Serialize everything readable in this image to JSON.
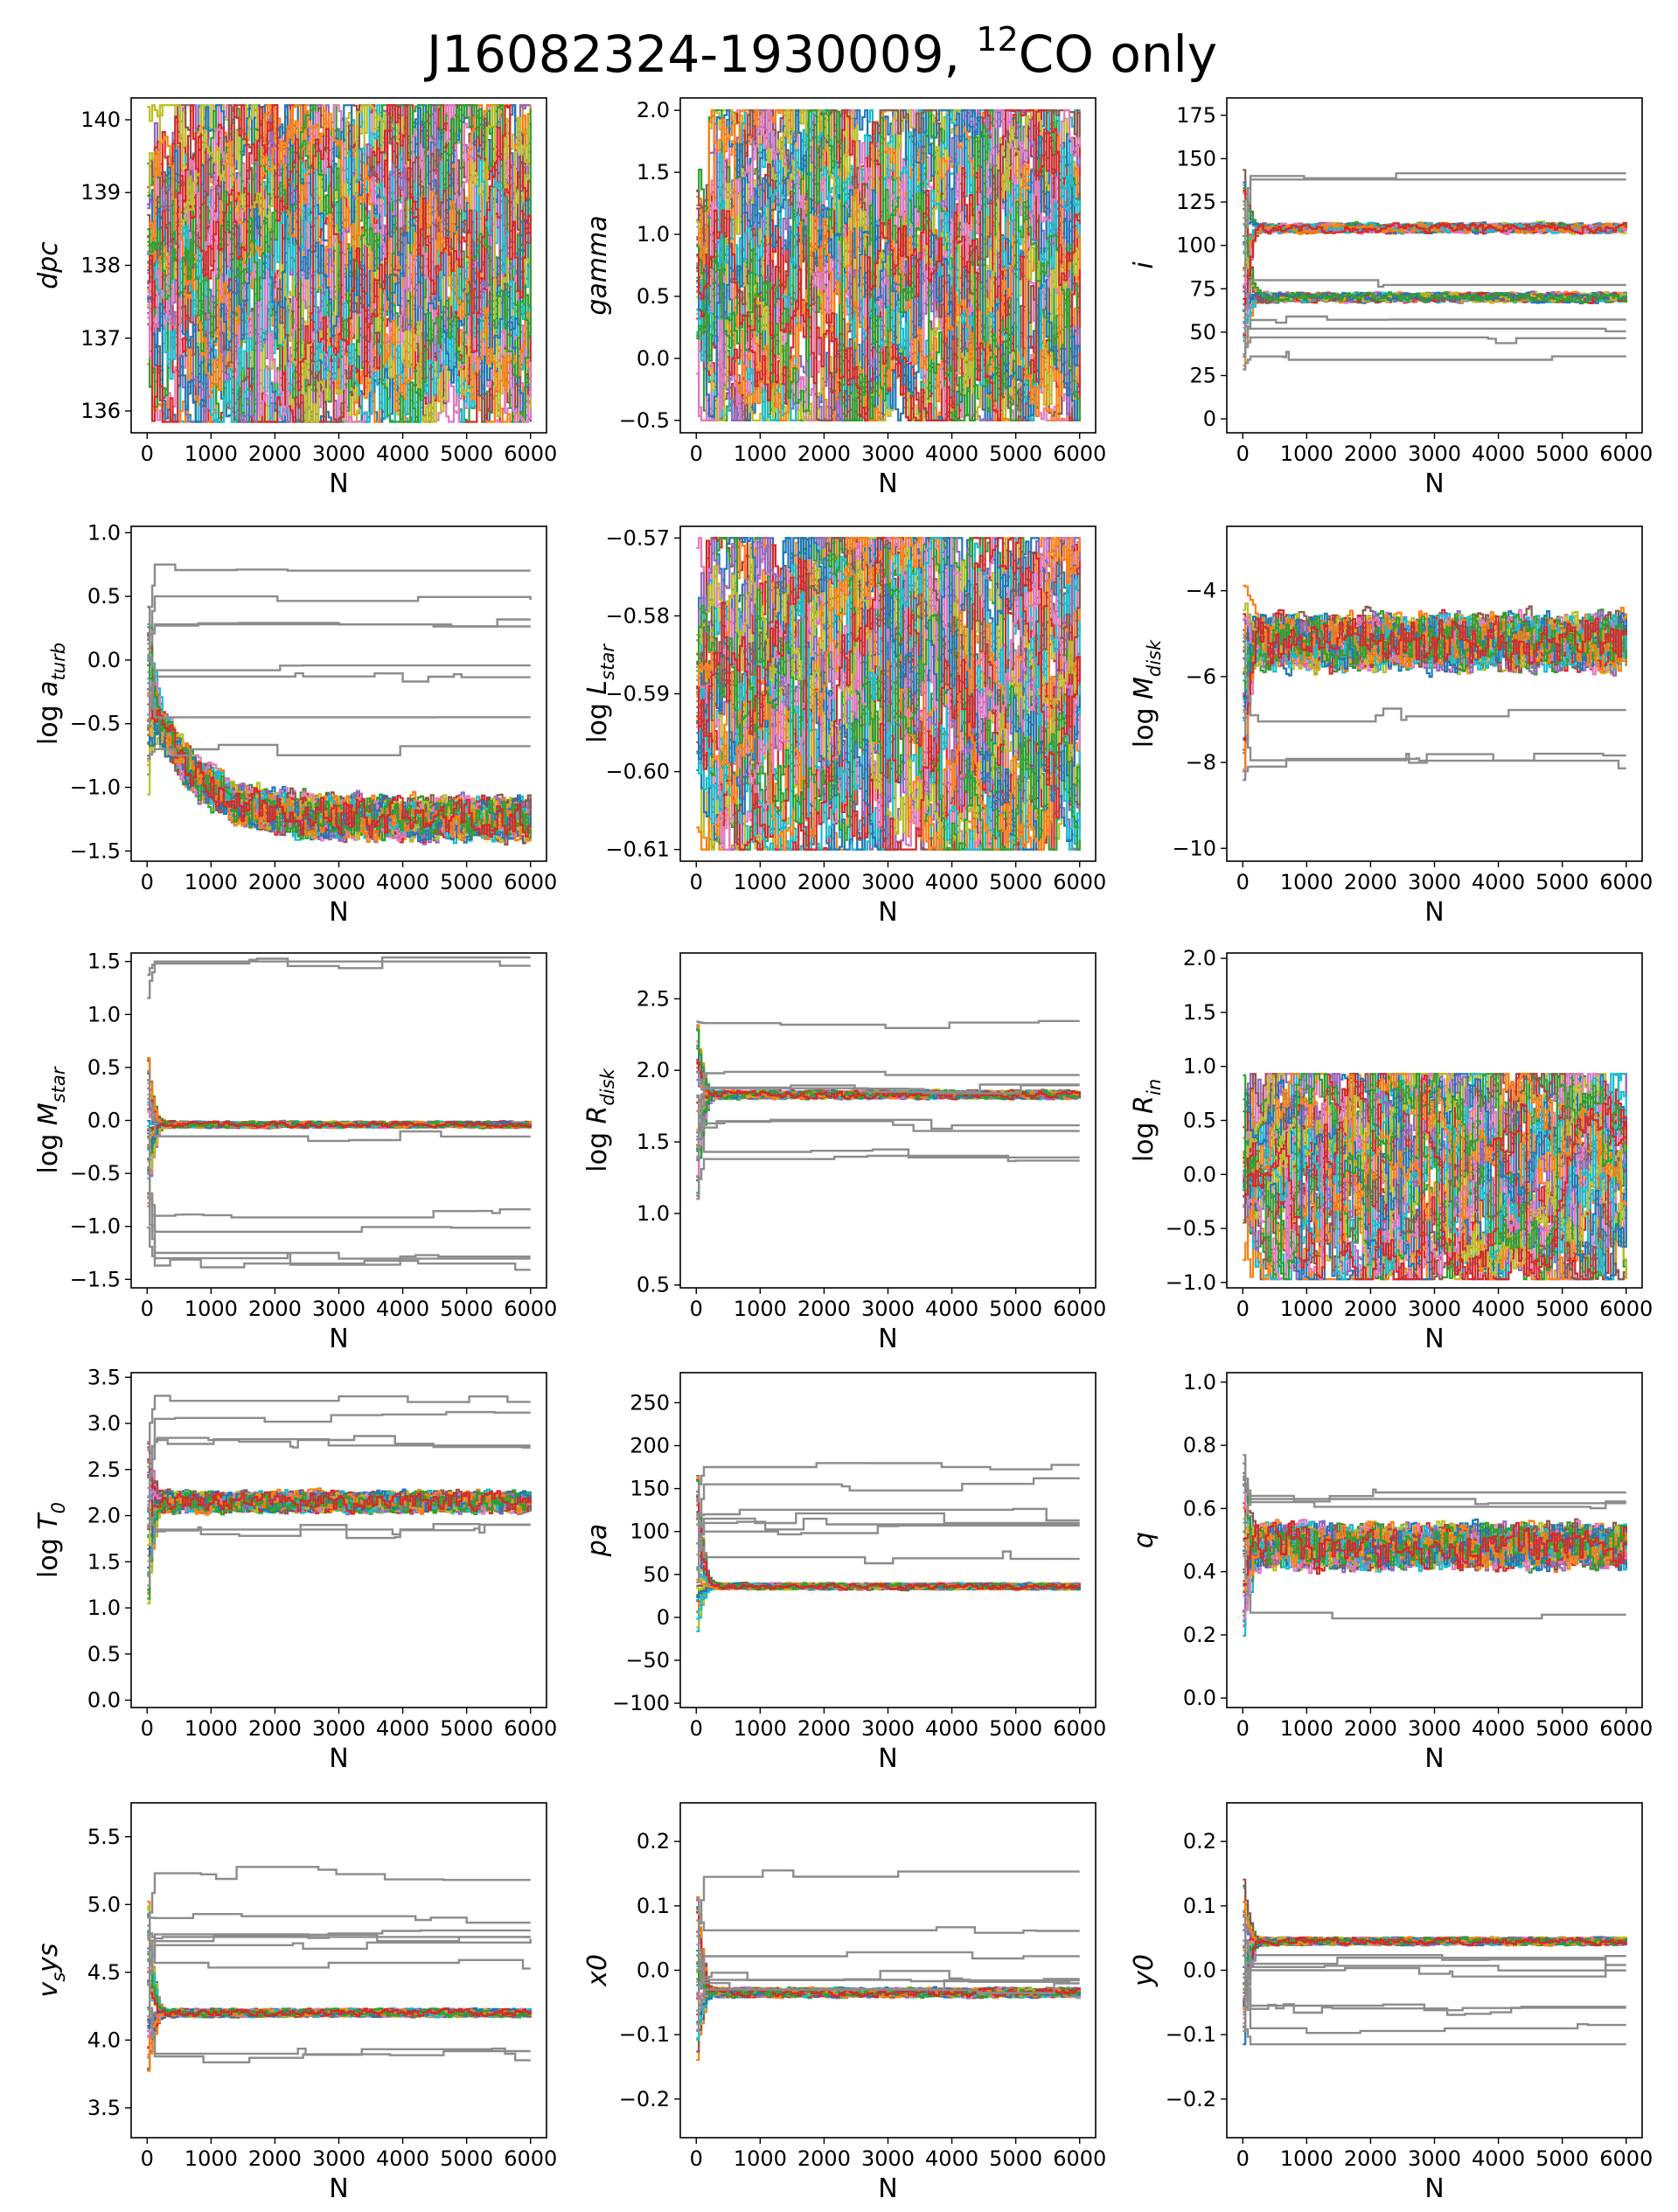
{
  "figure": {
    "title": "J16082324-1930009, ",
    "title_sup": "12",
    "title_tail": "CO only"
  },
  "chart_data": [
    {
      "type": "line",
      "key": "dpc",
      "ylabel": "dpc",
      "xlabel": "N",
      "xlim": [
        -250,
        6250
      ],
      "ylim": [
        135.7,
        140.3
      ],
      "xticks": [
        0,
        1000,
        2000,
        3000,
        4000,
        5000,
        6000
      ],
      "yticks": [
        136,
        137,
        138,
        139,
        140
      ],
      "pattern": "uniform",
      "range": [
        135.85,
        140.2
      ],
      "sample_values": [
        137.5,
        139.2,
        136.4,
        138.8,
        140.0,
        136.1
      ]
    },
    {
      "type": "line",
      "key": "gamma",
      "ylabel": "gamma",
      "xlabel": "N",
      "xlim": [
        -250,
        6250
      ],
      "ylim": [
        -0.6,
        2.1
      ],
      "xticks": [
        0,
        1000,
        2000,
        3000,
        4000,
        5000,
        6000
      ],
      "yticks": [
        -0.5,
        0.0,
        0.5,
        1.0,
        1.5,
        2.0
      ],
      "pattern": "uniform",
      "range": [
        -0.5,
        2.0
      ],
      "sample_values": [
        0.5,
        1.6,
        -0.2,
        1.2,
        0.8,
        1.9
      ]
    },
    {
      "type": "line",
      "key": "i",
      "ylabel": "i",
      "xlabel": "N",
      "xlim": [
        -250,
        6250
      ],
      "ylim": [
        -8,
        185
      ],
      "xticks": [
        0,
        1000,
        2000,
        3000,
        4000,
        5000,
        6000
      ],
      "yticks": [
        0,
        25,
        50,
        75,
        100,
        125,
        150,
        175
      ],
      "pattern": "bimodal",
      "modes": [
        70,
        110
      ],
      "spread": 2,
      "outliers": [
        140,
        138,
        80,
        57,
        52,
        47,
        36
      ]
    },
    {
      "type": "line",
      "key": "log_aturb",
      "ylabel": "log a",
      "ylabel_sub": "turb",
      "xlabel": "N",
      "xlim": [
        -250,
        6250
      ],
      "ylim": [
        -1.58,
        1.05
      ],
      "xticks": [
        0,
        1000,
        2000,
        3000,
        4000,
        5000,
        6000
      ],
      "yticks": [
        -1.5,
        -1.0,
        -0.5,
        0.0,
        0.5,
        1.0
      ],
      "pattern": "decay",
      "start": -0.3,
      "final": -1.25,
      "spread": 0.12,
      "outliers": [
        0.75,
        0.5,
        0.28,
        0.27,
        -0.08,
        -0.13,
        -0.45,
        -0.7
      ]
    },
    {
      "type": "line",
      "key": "log_Lstar",
      "ylabel": "log L",
      "ylabel_sub": "star",
      "xlabel": "N",
      "xlim": [
        -250,
        6250
      ],
      "ylim": [
        -0.6115,
        -0.5685
      ],
      "xticks": [
        0,
        1000,
        2000,
        3000,
        4000,
        5000,
        6000
      ],
      "yticks": [
        -0.61,
        -0.6,
        -0.59,
        -0.58,
        -0.57
      ],
      "pattern": "uniform",
      "range": [
        -0.61,
        -0.57
      ],
      "sample_values": [
        -0.59,
        -0.575,
        -0.605,
        -0.585,
        -0.598,
        -0.571
      ]
    },
    {
      "type": "line",
      "key": "log_Mdisk",
      "ylabel": "log M",
      "ylabel_sub": "disk",
      "xlabel": "N",
      "xlim": [
        -250,
        6250
      ],
      "ylim": [
        -10.3,
        -2.5
      ],
      "xticks": [
        0,
        1000,
        2000,
        3000,
        4000,
        5000,
        6000
      ],
      "yticks": [
        -10,
        -8,
        -6,
        -4
      ],
      "pattern": "converge",
      "center": -5.2,
      "spread": 0.45,
      "outliers": [
        -8.0,
        -7.95,
        -6.9
      ]
    },
    {
      "type": "line",
      "key": "log_Mstar",
      "ylabel": "log M",
      "ylabel_sub": "star",
      "xlabel": "N",
      "xlim": [
        -250,
        6250
      ],
      "ylim": [
        -1.58,
        1.58
      ],
      "xticks": [
        0,
        1000,
        2000,
        3000,
        4000,
        5000,
        6000
      ],
      "yticks": [
        -1.5,
        -1.0,
        -0.5,
        0.0,
        0.5,
        1.0,
        1.5
      ],
      "pattern": "converge",
      "center": -0.04,
      "spread": 0.02,
      "outliers": [
        1.5,
        1.48,
        -0.15,
        -0.9,
        -1.05,
        -1.25,
        -1.3,
        -1.37
      ]
    },
    {
      "type": "line",
      "key": "log_Rdisk",
      "ylabel": "log R",
      "ylabel_sub": "disk",
      "xlabel": "N",
      "xlim": [
        -250,
        6250
      ],
      "ylim": [
        0.48,
        2.82
      ],
      "xticks": [
        0,
        1000,
        2000,
        3000,
        4000,
        5000,
        6000
      ],
      "yticks": [
        0.5,
        1.0,
        1.5,
        2.0,
        2.5
      ],
      "pattern": "converge",
      "center": 1.83,
      "spread": 0.02,
      "outliers": [
        2.33,
        1.98,
        1.88,
        1.87,
        1.63,
        1.6,
        1.43,
        1.38
      ]
    },
    {
      "type": "line",
      "key": "log_Rin",
      "ylabel": "log R",
      "ylabel_sub": "in",
      "xlabel": "N",
      "xlim": [
        -250,
        6250
      ],
      "ylim": [
        -1.05,
        2.05
      ],
      "xticks": [
        0,
        1000,
        2000,
        3000,
        4000,
        5000,
        6000
      ],
      "yticks": [
        -1.0,
        -0.5,
        0.0,
        0.5,
        1.0,
        1.5,
        2.0
      ],
      "pattern": "uniform",
      "range": [
        -0.97,
        0.93
      ],
      "sample_values": [
        0.3,
        -0.6,
        0.8,
        -0.9,
        0.1,
        0.6
      ]
    },
    {
      "type": "line",
      "key": "log_T0",
      "ylabel": "log T",
      "ylabel_sub": "0",
      "xlabel": "N",
      "xlim": [
        -250,
        6250
      ],
      "ylim": [
        -0.08,
        3.55
      ],
      "xticks": [
        0,
        1000,
        2000,
        3000,
        4000,
        5000,
        6000
      ],
      "yticks": [
        0.0,
        0.5,
        1.0,
        1.5,
        2.0,
        2.5,
        3.0,
        3.5
      ],
      "pattern": "converge",
      "center": 2.15,
      "spread": 0.08,
      "outliers": [
        3.3,
        3.05,
        2.82,
        2.8,
        1.85,
        1.83
      ]
    },
    {
      "type": "line",
      "key": "pa",
      "ylabel": "pa",
      "xlabel": "N",
      "xlim": [
        -250,
        6250
      ],
      "ylim": [
        -105,
        285
      ],
      "xticks": [
        0,
        1000,
        2000,
        3000,
        4000,
        5000,
        6000
      ],
      "yticks": [
        -100,
        -50,
        0,
        50,
        100,
        150,
        200,
        250
      ],
      "pattern": "converge",
      "center": 36,
      "spread": 2.5,
      "outliers": [
        175,
        155,
        120,
        115,
        110,
        100,
        70
      ]
    },
    {
      "type": "line",
      "key": "q",
      "ylabel": "q",
      "xlabel": "N",
      "xlim": [
        -250,
        6250
      ],
      "ylim": [
        -0.03,
        1.03
      ],
      "xticks": [
        0,
        1000,
        2000,
        3000,
        4000,
        5000,
        6000
      ],
      "yticks": [
        0.0,
        0.2,
        0.4,
        0.6,
        0.8,
        1.0
      ],
      "pattern": "converge",
      "center": 0.48,
      "spread": 0.05,
      "outliers": [
        0.64,
        0.63,
        0.62,
        0.27
      ]
    },
    {
      "type": "line",
      "key": "vsys",
      "ylabel": "v",
      "ylabel_sub": "s",
      "ylabel_tail": "ys",
      "xlabel": "N",
      "xlim": [
        -250,
        6250
      ],
      "ylim": [
        3.28,
        5.75
      ],
      "xticks": [
        0,
        1000,
        2000,
        3000,
        4000,
        5000,
        6000
      ],
      "yticks": [
        3.5,
        4.0,
        4.5,
        5.0,
        5.5
      ],
      "pattern": "converge",
      "center": 4.2,
      "spread": 0.02,
      "outliers": [
        5.23,
        4.9,
        4.78,
        4.75,
        4.73,
        4.7,
        4.57,
        3.9,
        3.88
      ]
    },
    {
      "type": "line",
      "key": "x0",
      "ylabel": "x0",
      "xlabel": "N",
      "xlim": [
        -250,
        6250
      ],
      "ylim": [
        -0.26,
        0.26
      ],
      "xticks": [
        0,
        1000,
        2000,
        3000,
        4000,
        5000,
        6000
      ],
      "yticks": [
        -0.2,
        -0.1,
        0.0,
        0.1,
        0.2
      ],
      "pattern": "converge",
      "center": -0.035,
      "spread": 0.005,
      "outliers": [
        0.145,
        0.062,
        0.025,
        -0.01,
        -0.015,
        -0.02,
        -0.03
      ]
    },
    {
      "type": "line",
      "key": "y0",
      "ylabel": "y0",
      "xlabel": "N",
      "xlim": [
        -250,
        6250
      ],
      "ylim": [
        -0.26,
        0.26
      ],
      "xticks": [
        0,
        1000,
        2000,
        3000,
        4000,
        5000,
        6000
      ],
      "yticks": [
        -0.2,
        -0.1,
        0.0,
        0.1,
        0.2
      ],
      "pattern": "converge",
      "center": 0.045,
      "spread": 0.004,
      "outliers": [
        0.015,
        0.01,
        0.005,
        0.0,
        -0.055,
        -0.06,
        -0.09,
        -0.115
      ]
    }
  ],
  "colors": [
    "#1f77b4",
    "#ff7f0e",
    "#2ca02c",
    "#d62728",
    "#9467bd",
    "#8c564b",
    "#e377c2",
    "#bcbd22",
    "#17becf"
  ],
  "outlier_color": "#8c8c8c"
}
